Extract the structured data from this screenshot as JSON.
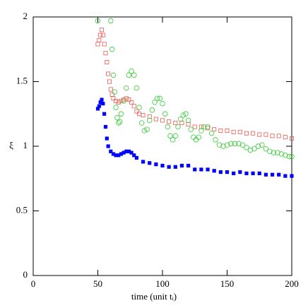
{
  "chart_data": {
    "type": "scatter",
    "xlabel": "time (unit tᵢ)",
    "ylabel": "ξ",
    "xlim": [
      0,
      200
    ],
    "ylim": [
      0,
      2
    ],
    "xticks": [
      0,
      50,
      100,
      150,
      200
    ],
    "yticks": [
      0,
      {
        "value": 0.5,
        "label": "0.5"
      },
      1,
      {
        "value": 1.5,
        "label": "1.5"
      },
      2
    ],
    "series": [
      {
        "color": "#0000ff",
        "marker": "filled-square",
        "x": [
          50,
          51,
          52,
          53,
          54,
          55,
          56,
          57,
          58,
          60,
          62,
          64,
          66,
          68,
          70,
          72,
          74,
          76,
          78,
          80,
          85,
          90,
          95,
          100,
          105,
          110,
          115,
          120,
          125,
          130,
          135,
          140,
          145,
          150,
          155,
          160,
          165,
          170,
          175,
          180,
          185,
          190,
          195,
          200
        ],
        "values": [
          1.29,
          1.31,
          1.34,
          1.36,
          1.33,
          1.25,
          1.15,
          1.06,
          1.0,
          0.96,
          0.94,
          0.93,
          0.93,
          0.94,
          0.95,
          0.96,
          0.96,
          0.95,
          0.93,
          0.91,
          0.88,
          0.87,
          0.86,
          0.85,
          0.84,
          0.84,
          0.85,
          0.85,
          0.82,
          0.82,
          0.82,
          0.81,
          0.8,
          0.8,
          0.79,
          0.8,
          0.79,
          0.79,
          0.79,
          0.78,
          0.78,
          0.78,
          0.77,
          0.77
        ]
      },
      {
        "color": "#e8584f",
        "marker": "open-square",
        "x": [
          50,
          51,
          52,
          53,
          54,
          55,
          56,
          57,
          58,
          59,
          60,
          61,
          62,
          64,
          66,
          68,
          70,
          72,
          74,
          76,
          78,
          80,
          82,
          85,
          90,
          95,
          100,
          105,
          110,
          115,
          120,
          125,
          130,
          135,
          140,
          145,
          150,
          155,
          160,
          165,
          170,
          175,
          180,
          185,
          190,
          195,
          200
        ],
        "values": [
          1.79,
          1.82,
          1.86,
          1.9,
          1.86,
          1.79,
          1.72,
          1.65,
          1.56,
          1.5,
          1.44,
          1.4,
          1.37,
          1.35,
          1.34,
          1.35,
          1.36,
          1.37,
          1.36,
          1.34,
          1.31,
          1.27,
          1.25,
          1.24,
          1.23,
          1.21,
          1.2,
          1.19,
          1.18,
          1.18,
          1.17,
          1.15,
          1.15,
          1.14,
          1.13,
          1.12,
          1.12,
          1.11,
          1.11,
          1.1,
          1.1,
          1.09,
          1.09,
          1.08,
          1.08,
          1.07,
          1.06
        ]
      },
      {
        "color": "#33cc33",
        "marker": "open-circle",
        "x": [
          50,
          60,
          61,
          62,
          63,
          64,
          65,
          66,
          67,
          68,
          70,
          72,
          74,
          76,
          78,
          80,
          82,
          84,
          86,
          88,
          90,
          92,
          94,
          96,
          98,
          100,
          102,
          104,
          106,
          108,
          110,
          112,
          114,
          116,
          118,
          120,
          122,
          124,
          126,
          128,
          130,
          132,
          135,
          138,
          141,
          144,
          147,
          150,
          153,
          156,
          159,
          162,
          165,
          168,
          171,
          174,
          177,
          180,
          183,
          186,
          189,
          192,
          195,
          198,
          200
        ],
        "values": [
          1.97,
          1.97,
          1.75,
          1.55,
          1.42,
          1.3,
          1.22,
          1.18,
          1.19,
          1.25,
          1.35,
          1.45,
          1.55,
          1.58,
          1.55,
          1.45,
          1.3,
          1.18,
          1.12,
          1.13,
          1.2,
          1.28,
          1.34,
          1.37,
          1.37,
          1.33,
          1.25,
          1.15,
          1.08,
          1.05,
          1.08,
          1.15,
          1.21,
          1.24,
          1.25,
          1.2,
          1.13,
          1.07,
          1.05,
          1.07,
          1.12,
          1.15,
          1.15,
          1.1,
          1.05,
          1.01,
          1.0,
          1.01,
          1.02,
          1.02,
          1.02,
          1.01,
          0.99,
          0.97,
          0.98,
          1.0,
          1.01,
          0.98,
          0.96,
          0.95,
          0.95,
          0.94,
          0.93,
          0.92,
          0.92
        ]
      }
    ]
  }
}
